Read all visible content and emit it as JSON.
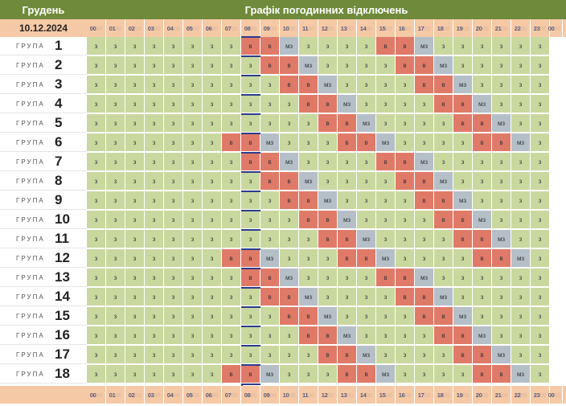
{
  "header": {
    "month": "Грудень",
    "title": "Графік погодинних відключень",
    "date": "10.12.2024"
  },
  "hours": [
    "00",
    "01",
    "02",
    "03",
    "04",
    "05",
    "06",
    "07",
    "08",
    "09",
    "10",
    "11",
    "12",
    "13",
    "14",
    "15",
    "16",
    "17",
    "18",
    "19",
    "20",
    "21",
    "22",
    "23",
    "00"
  ],
  "minutes_suffix": "00",
  "group_word": "ГРУПА",
  "status_text": {
    "on": "з",
    "off": "в",
    "maybe": "мз"
  },
  "colors": {
    "header_bg": "#6f8a3a",
    "band_bg": "#f6c9a6",
    "on": "#c9d89e",
    "off": "#e07a68",
    "maybe": "#b5bfc7",
    "current_hour": "#2c3c8c"
  },
  "current_hour_marker": "08",
  "groups": [
    {
      "number": "1",
      "slots": [
        "з",
        "з",
        "з",
        "з",
        "з",
        "з",
        "з",
        "з",
        "в",
        "в",
        "мз",
        "з",
        "з",
        "з",
        "з",
        "в",
        "в",
        "мз",
        "з",
        "з",
        "з",
        "з",
        "з",
        "з"
      ]
    },
    {
      "number": "2",
      "slots": [
        "з",
        "з",
        "з",
        "з",
        "з",
        "з",
        "з",
        "з",
        "з",
        "в",
        "в",
        "мз",
        "з",
        "з",
        "з",
        "з",
        "в",
        "в",
        "мз",
        "з",
        "з",
        "з",
        "з",
        "з"
      ]
    },
    {
      "number": "3",
      "slots": [
        "з",
        "з",
        "з",
        "з",
        "з",
        "з",
        "з",
        "з",
        "з",
        "з",
        "в",
        "в",
        "мз",
        "з",
        "з",
        "з",
        "з",
        "в",
        "в",
        "мз",
        "з",
        "з",
        "з",
        "з"
      ]
    },
    {
      "number": "4",
      "slots": [
        "з",
        "з",
        "з",
        "з",
        "з",
        "з",
        "з",
        "з",
        "з",
        "з",
        "з",
        "в",
        "в",
        "мз",
        "з",
        "з",
        "з",
        "з",
        "в",
        "в",
        "мз",
        "з",
        "з",
        "з"
      ]
    },
    {
      "number": "5",
      "slots": [
        "з",
        "з",
        "з",
        "з",
        "з",
        "з",
        "з",
        "з",
        "з",
        "з",
        "з",
        "з",
        "в",
        "в",
        "мз",
        "з",
        "з",
        "з",
        "з",
        "в",
        "в",
        "мз",
        "з",
        "з"
      ]
    },
    {
      "number": "6",
      "slots": [
        "з",
        "з",
        "з",
        "з",
        "з",
        "з",
        "з",
        "в",
        "в",
        "мз",
        "з",
        "з",
        "з",
        "в",
        "в",
        "мз",
        "з",
        "з",
        "з",
        "з",
        "в",
        "в",
        "мз",
        "з"
      ]
    },
    {
      "number": "7",
      "slots": [
        "з",
        "з",
        "з",
        "з",
        "з",
        "з",
        "з",
        "з",
        "в",
        "в",
        "мз",
        "з",
        "з",
        "з",
        "з",
        "в",
        "в",
        "мз",
        "з",
        "з",
        "з",
        "з",
        "з",
        "з"
      ]
    },
    {
      "number": "8",
      "slots": [
        "з",
        "з",
        "з",
        "з",
        "з",
        "з",
        "з",
        "з",
        "з",
        "в",
        "в",
        "мз",
        "з",
        "з",
        "з",
        "з",
        "в",
        "в",
        "мз",
        "з",
        "з",
        "з",
        "з",
        "з"
      ]
    },
    {
      "number": "9",
      "slots": [
        "з",
        "з",
        "з",
        "з",
        "з",
        "з",
        "з",
        "з",
        "з",
        "з",
        "в",
        "в",
        "мз",
        "з",
        "з",
        "з",
        "з",
        "в",
        "в",
        "мз",
        "з",
        "з",
        "з",
        "з"
      ]
    },
    {
      "number": "10",
      "slots": [
        "з",
        "з",
        "з",
        "з",
        "з",
        "з",
        "з",
        "з",
        "з",
        "з",
        "з",
        "в",
        "в",
        "мз",
        "з",
        "з",
        "з",
        "з",
        "в",
        "в",
        "мз",
        "з",
        "з",
        "з"
      ]
    },
    {
      "number": "11",
      "slots": [
        "з",
        "з",
        "з",
        "з",
        "з",
        "з",
        "з",
        "з",
        "з",
        "з",
        "з",
        "з",
        "в",
        "в",
        "мз",
        "з",
        "з",
        "з",
        "з",
        "в",
        "в",
        "мз",
        "з",
        "з"
      ]
    },
    {
      "number": "12",
      "slots": [
        "з",
        "з",
        "з",
        "з",
        "з",
        "з",
        "з",
        "в",
        "в",
        "мз",
        "з",
        "з",
        "з",
        "в",
        "в",
        "мз",
        "з",
        "з",
        "з",
        "з",
        "в",
        "в",
        "мз",
        "з"
      ]
    },
    {
      "number": "13",
      "slots": [
        "з",
        "з",
        "з",
        "з",
        "з",
        "з",
        "з",
        "з",
        "в",
        "в",
        "мз",
        "з",
        "з",
        "з",
        "з",
        "в",
        "в",
        "мз",
        "з",
        "з",
        "з",
        "з",
        "з",
        "з"
      ]
    },
    {
      "number": "14",
      "slots": [
        "з",
        "з",
        "з",
        "з",
        "з",
        "з",
        "з",
        "з",
        "з",
        "в",
        "в",
        "мз",
        "з",
        "з",
        "з",
        "з",
        "в",
        "в",
        "мз",
        "з",
        "з",
        "з",
        "з",
        "з"
      ]
    },
    {
      "number": "15",
      "slots": [
        "з",
        "з",
        "з",
        "з",
        "з",
        "з",
        "з",
        "з",
        "з",
        "з",
        "в",
        "в",
        "мз",
        "з",
        "з",
        "з",
        "з",
        "в",
        "в",
        "мз",
        "з",
        "з",
        "з",
        "з"
      ]
    },
    {
      "number": "16",
      "slots": [
        "з",
        "з",
        "з",
        "з",
        "з",
        "з",
        "з",
        "з",
        "з",
        "з",
        "з",
        "в",
        "в",
        "мз",
        "з",
        "з",
        "з",
        "з",
        "в",
        "в",
        "мз",
        "з",
        "з",
        "з"
      ]
    },
    {
      "number": "17",
      "slots": [
        "з",
        "з",
        "з",
        "з",
        "з",
        "з",
        "з",
        "з",
        "з",
        "з",
        "з",
        "з",
        "в",
        "в",
        "мз",
        "з",
        "з",
        "з",
        "з",
        "в",
        "в",
        "мз",
        "з",
        "з"
      ]
    },
    {
      "number": "18",
      "slots": [
        "з",
        "з",
        "з",
        "з",
        "з",
        "з",
        "з",
        "в",
        "в",
        "мз",
        "з",
        "з",
        "з",
        "в",
        "в",
        "мз",
        "з",
        "з",
        "з",
        "з",
        "в",
        "в",
        "мз",
        "з"
      ]
    }
  ]
}
